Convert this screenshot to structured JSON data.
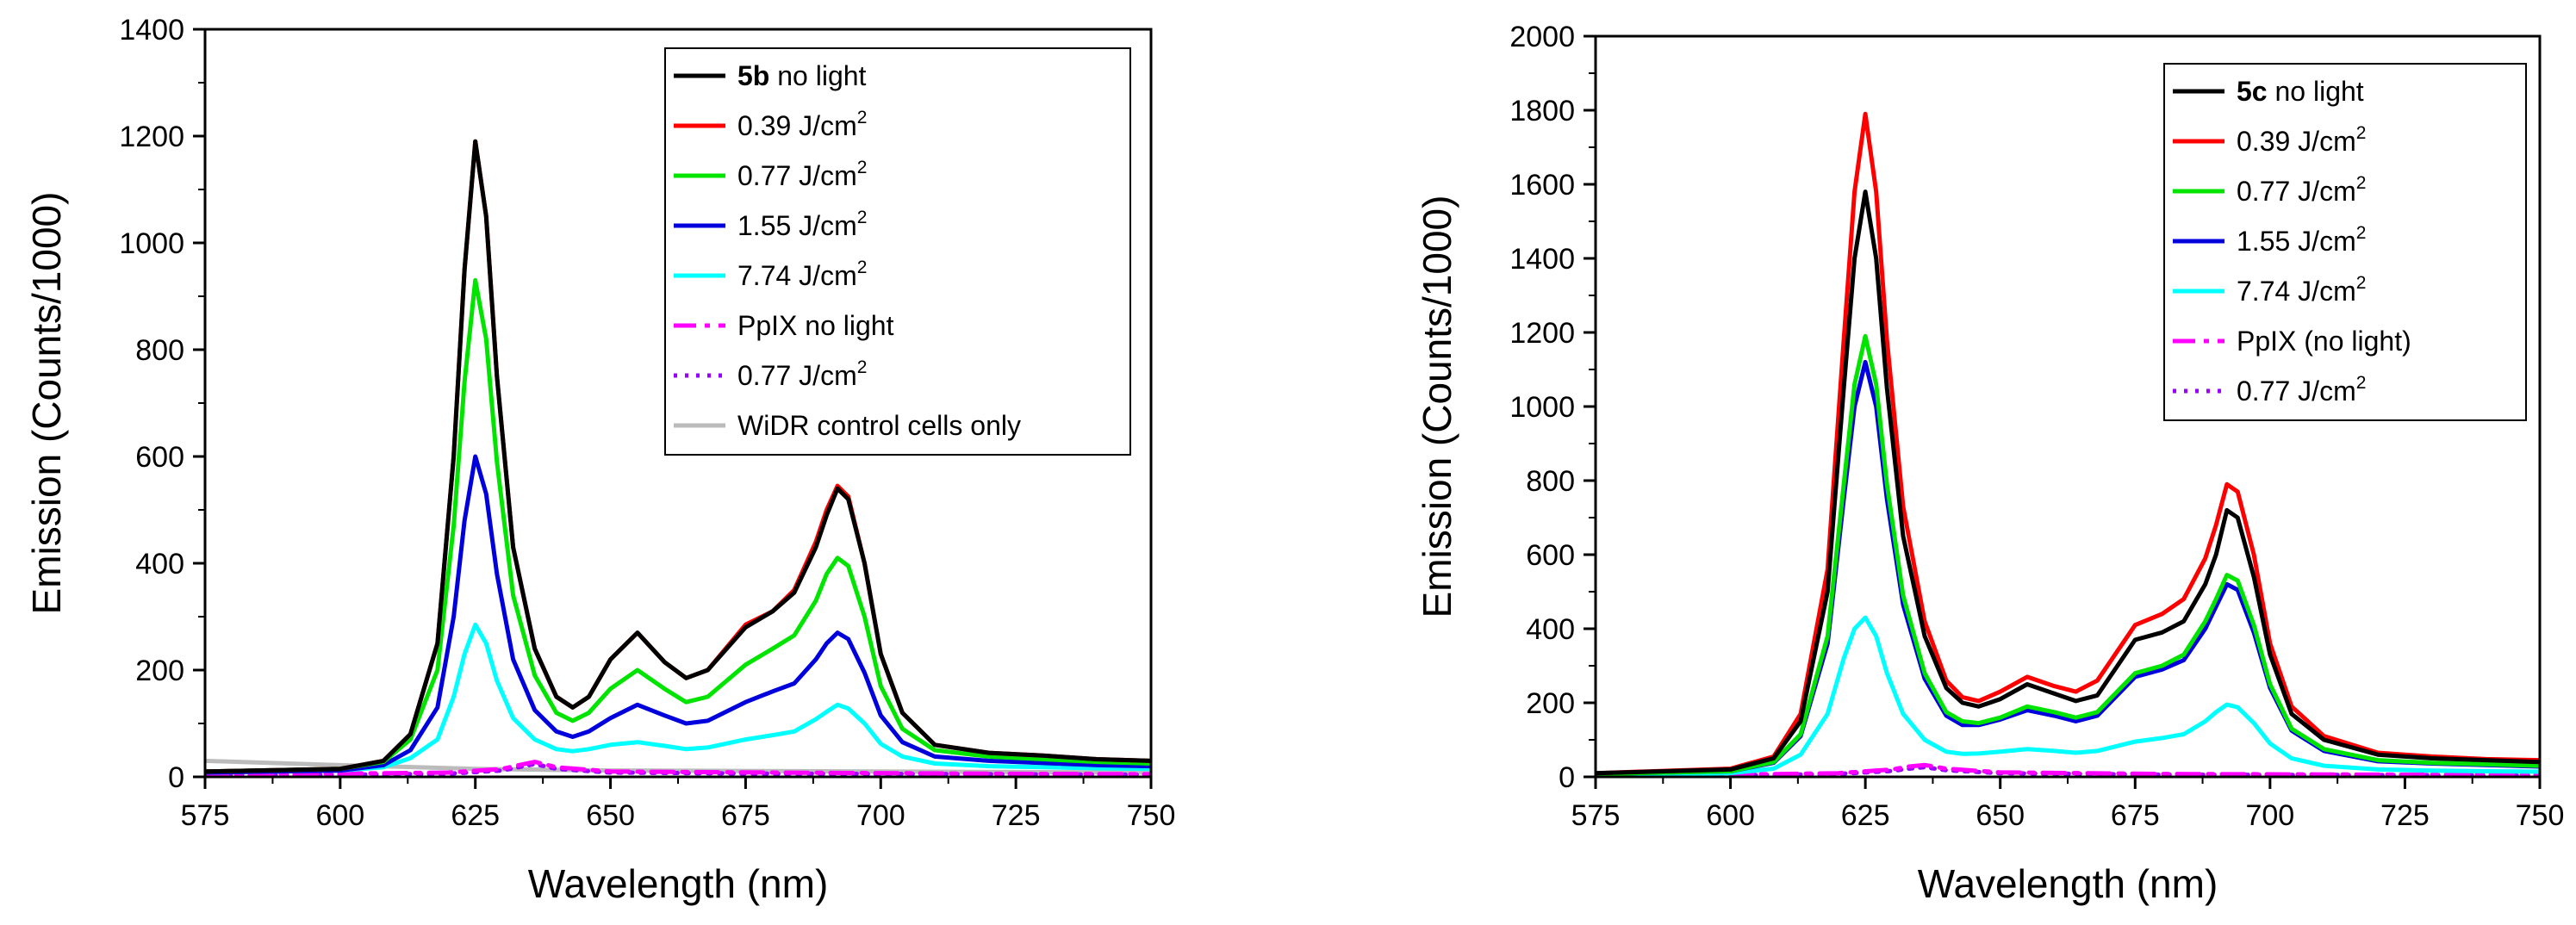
{
  "chart_data": [
    {
      "type": "line",
      "xlabel": "Wavelength (nm)",
      "ylabel": "Emission (Counts/1000)",
      "xlim": [
        575,
        750
      ],
      "ylim": [
        0,
        1400
      ],
      "xticks": [
        575,
        600,
        625,
        650,
        675,
        700,
        725,
        750
      ],
      "yticks": [
        0,
        200,
        400,
        600,
        800,
        1000,
        1200,
        1400
      ],
      "legend_position": "top-right",
      "series": [
        {
          "legend_bold": "5b",
          "legend_text": " no light",
          "color": "#000000",
          "dash": "solid",
          "x": [
            575,
            600,
            608,
            613,
            618,
            621,
            623,
            625,
            627,
            629,
            632,
            636,
            640,
            643,
            646,
            650,
            655,
            660,
            664,
            668,
            675,
            680,
            684,
            688,
            690,
            692,
            694,
            697,
            700,
            704,
            710,
            720,
            730,
            740,
            750
          ],
          "y": [
            10,
            15,
            30,
            80,
            250,
            600,
            950,
            1190,
            1050,
            750,
            430,
            240,
            150,
            130,
            150,
            220,
            270,
            215,
            185,
            200,
            280,
            310,
            345,
            430,
            490,
            540,
            520,
            400,
            230,
            120,
            60,
            45,
            40,
            33,
            30
          ]
        },
        {
          "legend_bold": "",
          "legend_text": "0.39 J/cm",
          "legend_sup": "2",
          "color": "#ff0000",
          "dash": "solid",
          "x": [
            575,
            600,
            608,
            613,
            618,
            621,
            623,
            625,
            627,
            629,
            632,
            636,
            640,
            643,
            646,
            650,
            655,
            660,
            664,
            668,
            675,
            680,
            684,
            688,
            690,
            692,
            694,
            697,
            700,
            704,
            710,
            720,
            730,
            740,
            750
          ],
          "y": [
            10,
            15,
            30,
            80,
            250,
            600,
            950,
            1190,
            1050,
            750,
            430,
            240,
            150,
            130,
            150,
            220,
            270,
            215,
            185,
            200,
            285,
            310,
            350,
            440,
            500,
            545,
            525,
            400,
            230,
            120,
            60,
            45,
            40,
            33,
            30
          ]
        },
        {
          "legend_bold": "",
          "legend_text": "0.77 J/cm",
          "legend_sup": "2",
          "color": "#00e400",
          "dash": "solid",
          "x": [
            575,
            600,
            608,
            613,
            618,
            621,
            623,
            625,
            627,
            629,
            632,
            636,
            640,
            643,
            646,
            650,
            655,
            660,
            664,
            668,
            675,
            680,
            684,
            688,
            690,
            692,
            694,
            697,
            700,
            704,
            710,
            720,
            730,
            740,
            750
          ],
          "y": [
            10,
            15,
            28,
            70,
            200,
            470,
            740,
            930,
            820,
            590,
            340,
            190,
            120,
            105,
            120,
            165,
            200,
            165,
            140,
            150,
            210,
            240,
            265,
            330,
            380,
            410,
            395,
            300,
            170,
            90,
            50,
            38,
            33,
            28,
            25
          ]
        },
        {
          "legend_bold": "",
          "legend_text": "1.55 J/cm",
          "legend_sup": "2",
          "color": "#0000dd",
          "dash": "solid",
          "x": [
            575,
            600,
            608,
            613,
            618,
            621,
            623,
            625,
            627,
            629,
            632,
            636,
            640,
            643,
            646,
            650,
            655,
            660,
            664,
            668,
            675,
            680,
            684,
            688,
            690,
            692,
            694,
            697,
            700,
            704,
            710,
            720,
            730,
            740,
            750
          ],
          "y": [
            8,
            12,
            22,
            50,
            130,
            300,
            480,
            600,
            530,
            380,
            220,
            125,
            85,
            75,
            85,
            110,
            135,
            115,
            100,
            105,
            140,
            160,
            175,
            220,
            250,
            270,
            258,
            195,
            115,
            65,
            38,
            30,
            26,
            22,
            20
          ]
        },
        {
          "legend_bold": "",
          "legend_text": "7.74 J/cm",
          "legend_sup": "2",
          "color": "#00ffff",
          "dash": "solid",
          "x": [
            575,
            600,
            608,
            613,
            618,
            621,
            623,
            625,
            627,
            629,
            632,
            636,
            640,
            643,
            646,
            650,
            655,
            660,
            664,
            668,
            675,
            680,
            684,
            688,
            690,
            692,
            694,
            697,
            700,
            704,
            710,
            720,
            730,
            740,
            750
          ],
          "y": [
            8,
            12,
            18,
            35,
            70,
            150,
            230,
            285,
            250,
            180,
            110,
            70,
            52,
            48,
            52,
            60,
            65,
            58,
            52,
            55,
            70,
            78,
            85,
            108,
            122,
            135,
            128,
            100,
            62,
            38,
            25,
            20,
            18,
            16,
            15
          ]
        },
        {
          "legend_bold": "",
          "legend_text": "PpIX no light",
          "color": "#ff00ff",
          "dash": "dashdot",
          "x": [
            575,
            600,
            620,
            630,
            633,
            636,
            640,
            650,
            680,
            720,
            750
          ],
          "y": [
            5,
            6,
            8,
            15,
            22,
            28,
            18,
            10,
            8,
            6,
            5
          ]
        },
        {
          "legend_bold": "",
          "legend_text": "0.77 J/cm",
          "legend_sup": "2",
          "color": "#9900ff",
          "dash": "dot",
          "x": [
            575,
            600,
            620,
            630,
            633,
            636,
            640,
            650,
            680,
            720,
            750
          ],
          "y": [
            3,
            4,
            6,
            12,
            18,
            24,
            15,
            8,
            6,
            5,
            4
          ]
        },
        {
          "legend_bold": "",
          "legend_text": "WiDR control cells only",
          "color": "#bbbbbb",
          "dash": "solid",
          "x": [
            575,
            600,
            625,
            650,
            700,
            750
          ],
          "y": [
            30,
            22,
            15,
            12,
            10,
            8
          ]
        }
      ]
    },
    {
      "type": "line",
      "xlabel": "Wavelength (nm)",
      "ylabel": "Emission (Counts/1000)",
      "xlim": [
        575,
        750
      ],
      "ylim": [
        0,
        2000
      ],
      "xticks": [
        575,
        600,
        625,
        650,
        675,
        700,
        725,
        750
      ],
      "yticks": [
        0,
        200,
        400,
        600,
        800,
        1000,
        1200,
        1400,
        1600,
        1800,
        2000
      ],
      "legend_position": "top-right",
      "series": [
        {
          "legend_bold": "5c",
          "legend_text": " no light",
          "color": "#000000",
          "dash": "solid",
          "x": [
            575,
            600,
            608,
            613,
            618,
            621,
            623,
            625,
            627,
            629,
            632,
            636,
            640,
            643,
            646,
            650,
            655,
            660,
            664,
            668,
            675,
            680,
            684,
            688,
            690,
            692,
            694,
            697,
            700,
            704,
            710,
            720,
            730,
            740,
            750
          ],
          "y": [
            10,
            20,
            50,
            150,
            500,
            1050,
            1400,
            1580,
            1400,
            1050,
            650,
            380,
            240,
            200,
            190,
            210,
            250,
            225,
            205,
            220,
            370,
            390,
            420,
            520,
            600,
            720,
            700,
            540,
            330,
            170,
            100,
            60,
            50,
            45,
            40
          ]
        },
        {
          "legend_bold": "",
          "legend_text": "0.39 J/cm",
          "legend_sup": "2",
          "color": "#ff0000",
          "dash": "solid",
          "x": [
            575,
            600,
            608,
            613,
            618,
            621,
            623,
            625,
            627,
            629,
            632,
            636,
            640,
            643,
            646,
            650,
            655,
            660,
            664,
            668,
            675,
            680,
            684,
            688,
            690,
            692,
            694,
            697,
            700,
            704,
            710,
            720,
            730,
            740,
            750
          ],
          "y": [
            10,
            22,
            55,
            170,
            560,
            1180,
            1580,
            1790,
            1580,
            1180,
            730,
            420,
            260,
            215,
            205,
            230,
            270,
            245,
            230,
            260,
            410,
            440,
            480,
            590,
            680,
            790,
            770,
            600,
            360,
            190,
            110,
            65,
            55,
            48,
            45
          ]
        },
        {
          "legend_bold": "",
          "legend_text": "0.77 J/cm",
          "legend_sup": "2",
          "color": "#00e400",
          "dash": "solid",
          "x": [
            575,
            600,
            608,
            613,
            618,
            621,
            623,
            625,
            627,
            629,
            632,
            636,
            640,
            643,
            646,
            650,
            655,
            660,
            664,
            668,
            675,
            680,
            684,
            688,
            690,
            692,
            694,
            697,
            700,
            704,
            710,
            720,
            730,
            740,
            750
          ],
          "y": [
            8,
            15,
            40,
            115,
            380,
            790,
            1060,
            1190,
            1060,
            790,
            490,
            280,
            175,
            150,
            145,
            160,
            190,
            175,
            160,
            175,
            280,
            300,
            330,
            420,
            480,
            545,
            530,
            410,
            250,
            130,
            75,
            45,
            38,
            34,
            30
          ]
        },
        {
          "legend_bold": "",
          "legend_text": "1.55 J/cm",
          "legend_sup": "2",
          "color": "#0000dd",
          "dash": "solid",
          "x": [
            575,
            600,
            608,
            613,
            618,
            621,
            623,
            625,
            627,
            629,
            632,
            636,
            640,
            643,
            646,
            650,
            655,
            660,
            664,
            668,
            675,
            680,
            684,
            688,
            690,
            692,
            694,
            697,
            700,
            704,
            710,
            720,
            730,
            740,
            750
          ],
          "y": [
            8,
            15,
            38,
            110,
            360,
            750,
            1000,
            1120,
            1000,
            750,
            465,
            265,
            165,
            140,
            140,
            155,
            180,
            165,
            150,
            165,
            270,
            290,
            315,
            400,
            460,
            520,
            505,
            390,
            240,
            125,
            70,
            42,
            36,
            32,
            28
          ]
        },
        {
          "legend_bold": "",
          "legend_text": "7.74 J/cm",
          "legend_sup": "2",
          "color": "#00ffff",
          "dash": "solid",
          "x": [
            575,
            600,
            608,
            613,
            618,
            621,
            623,
            625,
            627,
            629,
            632,
            636,
            640,
            643,
            646,
            650,
            655,
            660,
            664,
            668,
            675,
            680,
            684,
            688,
            690,
            692,
            694,
            697,
            700,
            704,
            710,
            720,
            730,
            740,
            750
          ],
          "y": [
            5,
            10,
            22,
            60,
            170,
            320,
            400,
            430,
            380,
            280,
            170,
            100,
            68,
            62,
            63,
            68,
            75,
            70,
            65,
            70,
            95,
            105,
            115,
            150,
            175,
            195,
            188,
            145,
            90,
            50,
            30,
            20,
            17,
            15,
            14
          ]
        },
        {
          "legend_bold": "",
          "legend_text": "PpIX (no light)",
          "color": "#ff00ff",
          "dash": "dashdot",
          "x": [
            575,
            600,
            620,
            630,
            633,
            636,
            640,
            650,
            680,
            720,
            750
          ],
          "y": [
            5,
            6,
            10,
            20,
            28,
            32,
            22,
            12,
            8,
            6,
            5
          ]
        },
        {
          "legend_bold": "",
          "legend_text": "0.77 J/cm",
          "legend_sup": "2",
          "color": "#9900ff",
          "dash": "dot",
          "x": [
            575,
            600,
            620,
            630,
            633,
            636,
            640,
            650,
            680,
            720,
            750
          ],
          "y": [
            3,
            4,
            8,
            16,
            22,
            26,
            18,
            10,
            6,
            5,
            4
          ]
        }
      ]
    }
  ]
}
